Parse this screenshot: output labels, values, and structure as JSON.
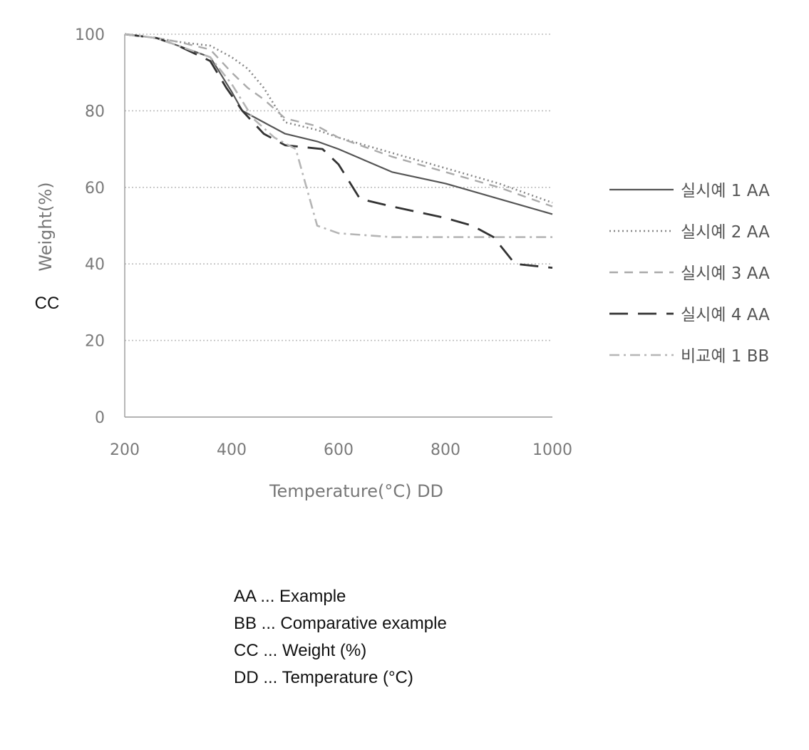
{
  "chart_data": {
    "type": "line",
    "xlabel": "Temperature(°C) DD",
    "ylabel": "Weight(%)",
    "ylabel_code": "CC",
    "xlim": [
      200,
      1000
    ],
    "ylim": [
      0,
      100
    ],
    "xticks": [
      "200",
      "400",
      "600",
      "800",
      "1000"
    ],
    "yticks": [
      "0",
      "20",
      "40",
      "60",
      "80",
      "100"
    ],
    "grid": true,
    "legend_position": "right",
    "series": [
      {
        "name": "실시예 1 AA",
        "color": "#555555",
        "dash": "solid",
        "x": [
          200,
          260,
          300,
          360,
          400,
          420,
          460,
          500,
          560,
          600,
          700,
          800,
          900,
          1000
        ],
        "y": [
          100,
          99,
          97,
          94,
          85,
          80,
          77,
          74,
          72,
          70,
          64,
          61,
          57,
          53
        ]
      },
      {
        "name": "실시예 2 AA",
        "color": "#888888",
        "dash": "dotted",
        "x": [
          200,
          260,
          300,
          360,
          400,
          430,
          460,
          500,
          560,
          600,
          700,
          800,
          900,
          1000
        ],
        "y": [
          100,
          99,
          98,
          97,
          94,
          91,
          86,
          77,
          75,
          73,
          69,
          65,
          61,
          56
        ]
      },
      {
        "name": "실시예 3 AA",
        "color": "#aaaaaa",
        "dash": "dashed",
        "x": [
          200,
          260,
          300,
          360,
          400,
          430,
          460,
          500,
          560,
          600,
          700,
          800,
          900,
          1000
        ],
        "y": [
          100,
          99,
          98,
          96,
          90,
          86,
          83,
          78,
          76,
          73,
          68,
          64,
          60,
          55
        ]
      },
      {
        "name": "실시예 4 AA",
        "color": "#333333",
        "dash": "longdash",
        "x": [
          200,
          260,
          300,
          360,
          390,
          420,
          460,
          500,
          570,
          600,
          640,
          700,
          800,
          850,
          890,
          930,
          1000
        ],
        "y": [
          100,
          99,
          97,
          93,
          86,
          80,
          74,
          71,
          70,
          66,
          57,
          55,
          52,
          50,
          47,
          40,
          39
        ]
      },
      {
        "name": "비교예 1 BB",
        "color": "#b5b5b5",
        "dash": "dashdot",
        "x": [
          200,
          260,
          300,
          360,
          400,
          440,
          480,
          520,
          540,
          560,
          600,
          700,
          800,
          900,
          1000
        ],
        "y": [
          100,
          99,
          97,
          94,
          87,
          78,
          73,
          70,
          60,
          50,
          48,
          47,
          47,
          47,
          47
        ]
      }
    ]
  },
  "notes": [
    "AA ... Example",
    "BB ... Comparative example",
    "CC ... Weight (%)",
    "DD ... Temperature (°C)"
  ]
}
